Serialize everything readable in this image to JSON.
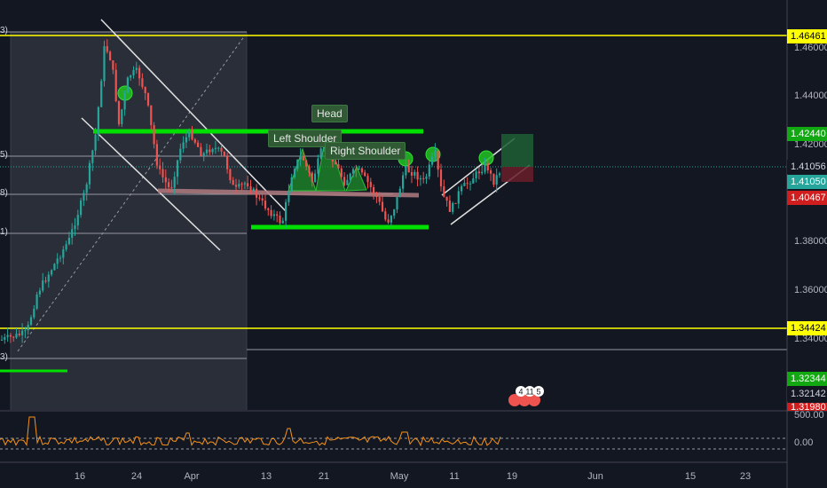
{
  "chart_data": {
    "type": "candlestick",
    "price_axis": {
      "ticks": [
        "1.46000",
        "1.44000",
        "1.42000",
        "1.38000",
        "1.36000",
        "1.34000"
      ],
      "markers": [
        {
          "label": "1.46461",
          "price": 1.46461,
          "bg": "#ffff00",
          "fg": "#000000"
        },
        {
          "label": "1.42440",
          "price": 1.4244,
          "bg": "#11a811",
          "fg": "#ffffff"
        },
        {
          "label": "1.41056",
          "price": 1.41056,
          "bg": "#131722",
          "fg": "#d1d4dc"
        },
        {
          "label": "1.41050",
          "price": 1.4105,
          "bg": "#26a69a",
          "fg": "#ffffff"
        },
        {
          "label": "1.40467",
          "price": 1.40467,
          "bg": "#d01d1d",
          "fg": "#ffffff"
        },
        {
          "label": "1.34424",
          "price": 1.34424,
          "bg": "#ffff00",
          "fg": "#000000"
        },
        {
          "label": "1.32344",
          "price": 1.32344,
          "bg": "#11a811",
          "fg": "#ffffff"
        },
        {
          "label": "1.32142",
          "price": 1.32142,
          "bg": "#131722",
          "fg": "#d1d4dc"
        },
        {
          "label": "1.31980",
          "price": 1.3198,
          "bg": "#d01d1d",
          "fg": "#ffffff"
        }
      ]
    },
    "time_axis": [
      "16",
      "24",
      "Apr",
      "13",
      "21",
      "May",
      "11",
      "19",
      "Jun",
      "15",
      "23"
    ],
    "horizontal_levels": [
      1.46461,
      1.34424
    ],
    "fib_levels": [
      {
        "label": "3)",
        "price": 1.4646
      },
      {
        "label": "5)",
        "price": 1.4155
      },
      {
        "label": "8)",
        "price": 1.4046
      },
      {
        "label": "1)",
        "price": 1.3935
      },
      {
        "label": "3)",
        "price": 1.3337
      }
    ],
    "annotations": [
      "Head",
      "Left Shoulder",
      "Right Shoulder"
    ],
    "indicator": {
      "ticks": [
        "500.00",
        "0.00"
      ]
    },
    "event_badges": [
      "4",
      "11",
      "5"
    ],
    "colors": {
      "up": "#26a69a",
      "down": "#ef5350",
      "level": "#ffff00",
      "zone": "#00e000"
    }
  }
}
